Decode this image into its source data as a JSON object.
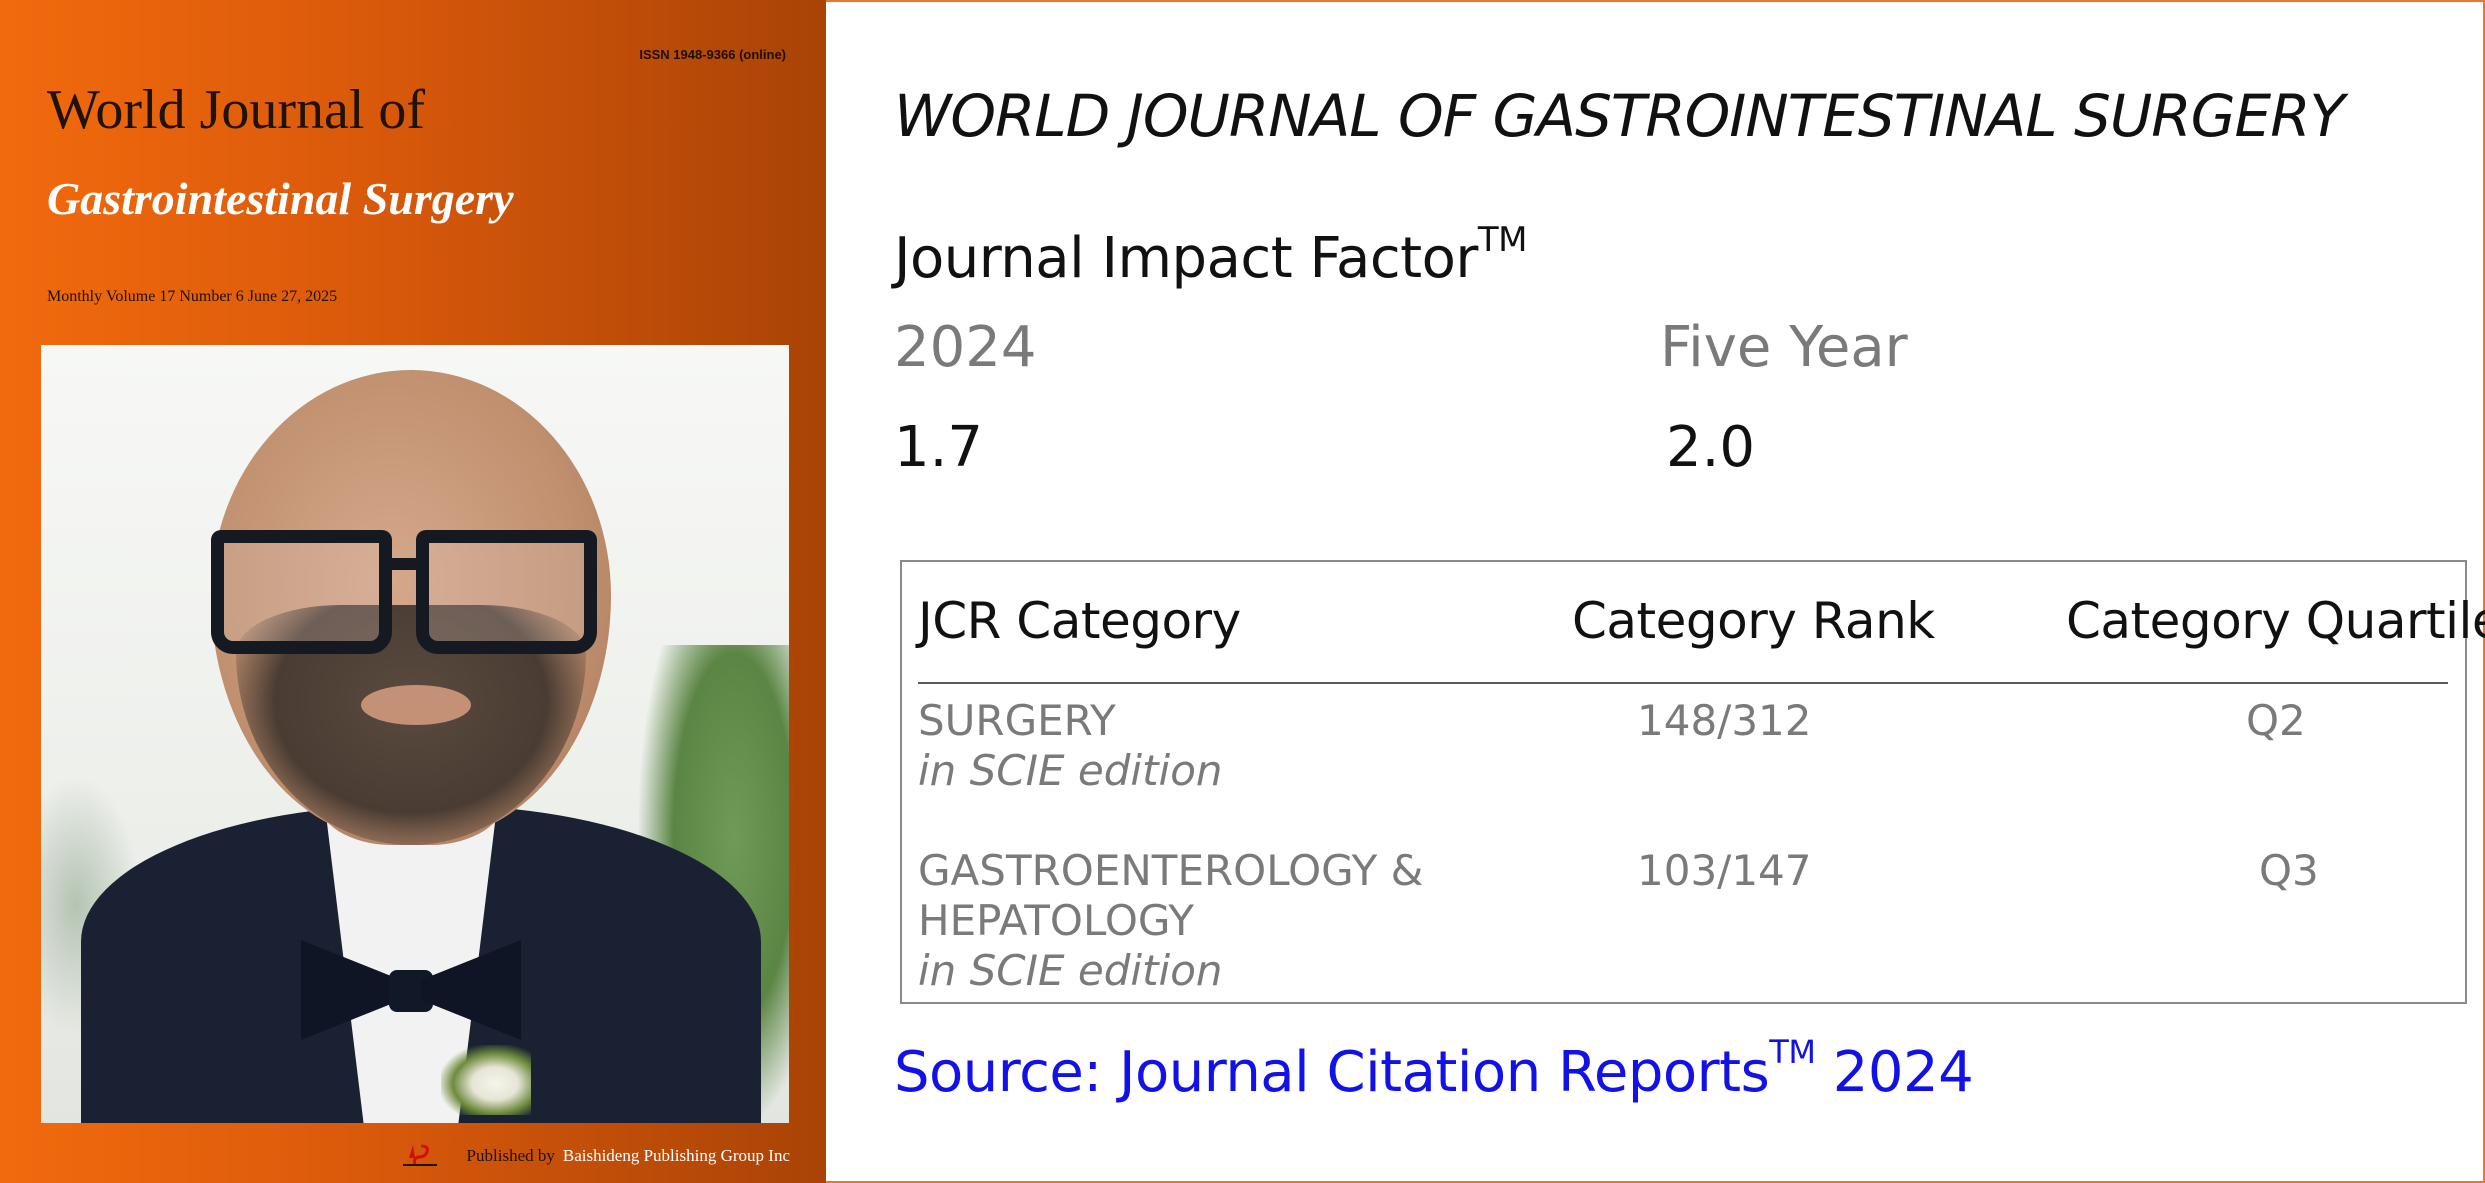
{
  "cover": {
    "issn": "ISSN 1948-9366 (online)",
    "title_line1": "World Journal of",
    "title_line2": "Gastrointestinal Surgery",
    "issue_line": "Monthly Volume 17 Number 6 June 27, 2025",
    "published_by": "Published by",
    "publisher_name": "Baishideng Publishing Group Inc"
  },
  "journal": {
    "name": "WORLD JOURNAL OF GASTROINTESTINAL SURGERY"
  },
  "impact_factor": {
    "title": "Journal Impact Factor",
    "trademark": "TM",
    "year_label": "2024",
    "year_value": "1.7",
    "five_year_label": "Five Year",
    "five_year_value": "2.0"
  },
  "jcr_table": {
    "headers": [
      "JCR Category",
      "Category Rank",
      "Category Quartile"
    ],
    "rows": [
      {
        "category_lines": [
          "SURGERY"
        ],
        "edition": "in SCIE edition",
        "rank": "148/312",
        "quartile": "Q2"
      },
      {
        "category_lines": [
          "GASTROENTEROLOGY &",
          "HEPATOLOGY"
        ],
        "edition": "in SCIE edition",
        "rank": "103/147",
        "quartile": "Q3"
      }
    ]
  },
  "source": {
    "text": "Source: Journal Citation Reports",
    "trademark": "TM",
    "year": "2024"
  },
  "colors": {
    "cover_orange": "#f26a0d",
    "cover_dark_orange": "#a94306",
    "source_blue": "#1212e8",
    "grey_text": "#7a7a7a",
    "border_orange": "#e8782a"
  }
}
